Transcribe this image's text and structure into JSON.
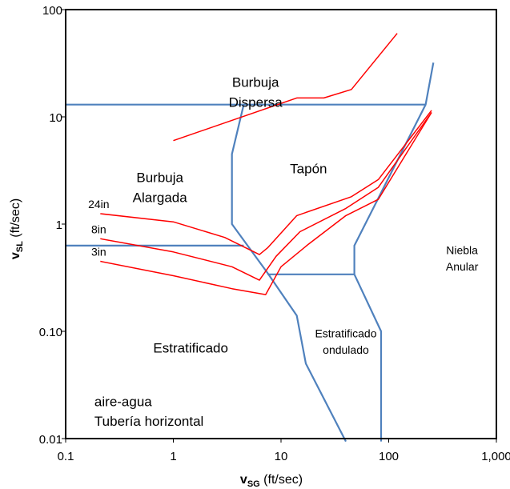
{
  "chart_data": {
    "type": "line",
    "xscale": "log",
    "yscale": "log",
    "xlim": [
      0.1,
      1000
    ],
    "ylim": [
      0.01,
      100
    ],
    "xlabel": {
      "v": "v",
      "sub": "SG",
      "unit": " (ft/sec)"
    },
    "ylabel": {
      "v": "v",
      "sub": "SL",
      "unit": " (ft/sec)"
    },
    "x_ticks": [
      {
        "value": 0.1,
        "label": "0.1"
      },
      {
        "value": 1,
        "label": "1"
      },
      {
        "value": 10,
        "label": "10"
      },
      {
        "value": 100,
        "label": "100"
      },
      {
        "value": 1000,
        "label": "1,000"
      }
    ],
    "y_ticks": [
      {
        "value": 0.01,
        "label": "0.01"
      },
      {
        "value": 0.1,
        "label": "0.10"
      },
      {
        "value": 1,
        "label": "1"
      },
      {
        "value": 10,
        "label": "10"
      },
      {
        "value": 100,
        "label": "100"
      }
    ],
    "colors": {
      "boundary": "#4f81bd",
      "transition": "#ff0000",
      "frame": "#000000"
    },
    "regions": [
      {
        "lines": [
          "Burbuja",
          "Dispersa"
        ],
        "x": 5.8,
        "y": 17,
        "style": "region"
      },
      {
        "lines": [
          "Tapón"
        ],
        "x": 18,
        "y": 3.3,
        "style": "region"
      },
      {
        "lines": [
          "Burbuja",
          "Alargada"
        ],
        "x": 0.75,
        "y": 2.2,
        "style": "region"
      },
      {
        "lines": [
          "Niebla",
          "Anular"
        ],
        "x": 480,
        "y": 0.48,
        "style": "region-sm"
      },
      {
        "lines": [
          "Estratificado",
          "ondulado"
        ],
        "x": 40,
        "y": 0.08,
        "style": "region-sm"
      },
      {
        "lines": [
          "Estratificado"
        ],
        "x": 1.45,
        "y": 0.07,
        "style": "region"
      },
      {
        "lines": [
          "aire-agua",
          "Tubería horizontal"
        ],
        "x": 0.185,
        "y": 0.018,
        "style": "region",
        "anchor": "start"
      }
    ],
    "series": [
      {
        "kind": "boundary",
        "points": [
          [
            0.1,
            13
          ],
          [
            220,
            13
          ]
        ]
      },
      {
        "kind": "boundary",
        "points": [
          [
            4.5,
            13
          ],
          [
            3.5,
            4.5
          ],
          [
            3.5,
            1.0
          ],
          [
            7.5,
            0.35
          ],
          [
            14,
            0.14
          ],
          [
            17,
            0.05
          ],
          [
            40,
            0.0094
          ]
        ]
      },
      {
        "kind": "boundary",
        "points": [
          [
            0.1,
            0.63
          ],
          [
            4.5,
            0.63
          ]
        ]
      },
      {
        "kind": "boundary",
        "points": [
          [
            7.5,
            0.34
          ],
          [
            48,
            0.34
          ]
        ]
      },
      {
        "kind": "boundary",
        "points": [
          [
            48,
            0.34
          ],
          [
            48,
            0.63
          ],
          [
            220,
            13
          ],
          [
            260,
            32
          ]
        ]
      },
      {
        "kind": "boundary",
        "points": [
          [
            48,
            0.34
          ],
          [
            85,
            0.1
          ],
          [
            85,
            0.0094
          ]
        ]
      },
      {
        "kind": "transition",
        "points": [
          [
            1,
            6
          ],
          [
            14,
            15
          ],
          [
            25,
            15
          ],
          [
            45,
            18
          ],
          [
            120,
            60
          ]
        ]
      },
      {
        "kind": "transition",
        "label": "24in",
        "points": [
          [
            0.21,
            1.25
          ],
          [
            1,
            1.05
          ],
          [
            3,
            0.75
          ],
          [
            6.3,
            0.52
          ],
          [
            7.5,
            0.6
          ],
          [
            14,
            1.2
          ],
          [
            45,
            1.8
          ],
          [
            80,
            2.6
          ],
          [
            250,
            11.5
          ]
        ]
      },
      {
        "kind": "transition",
        "label": "8in",
        "points": [
          [
            0.21,
            0.73
          ],
          [
            1,
            0.55
          ],
          [
            3.5,
            0.4
          ],
          [
            6.3,
            0.3
          ],
          [
            9,
            0.5
          ],
          [
            15,
            0.85
          ],
          [
            40,
            1.4
          ],
          [
            80,
            2.2
          ],
          [
            250,
            11
          ]
        ]
      },
      {
        "kind": "transition",
        "label": "3in",
        "points": [
          [
            0.21,
            0.45
          ],
          [
            1,
            0.33
          ],
          [
            3.5,
            0.25
          ],
          [
            7.2,
            0.22
          ],
          [
            10,
            0.4
          ],
          [
            18,
            0.65
          ],
          [
            40,
            1.2
          ],
          [
            80,
            1.7
          ],
          [
            250,
            11
          ]
        ]
      }
    ]
  }
}
